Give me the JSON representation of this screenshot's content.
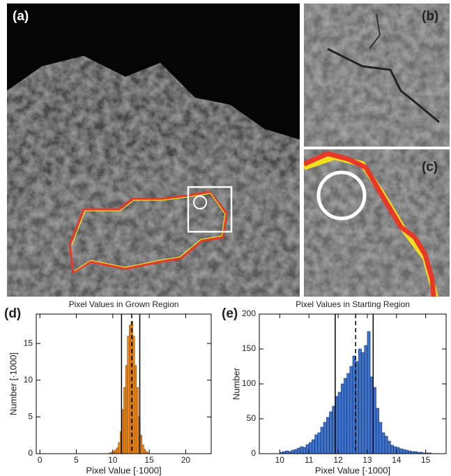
{
  "panel_labels": [
    "(a)",
    "(b)",
    "(c)"
  ],
  "chart_data": [
    {
      "type": "histogram",
      "label": "(d)",
      "title": "Pixel Values in Grown Region",
      "x_label": "Pixel Value [·1000]",
      "y_label": "Number [·1000]",
      "bins": [
        9.5,
        9.75,
        10,
        10.25,
        10.5,
        10.75,
        11,
        11.25,
        11.5,
        11.75,
        12,
        12.25,
        12.5,
        12.75,
        13,
        13.25,
        13.5,
        13.75,
        14,
        14.25,
        14.5,
        14.75,
        15
      ],
      "values": [
        0.1,
        0.2,
        0.3,
        0.5,
        0.8,
        1.5,
        3,
        6,
        9,
        12,
        16,
        17.5,
        18,
        16,
        12,
        9,
        5,
        2.5,
        1.2,
        0.6,
        0.3,
        0.1
      ],
      "color": "#f08c1e",
      "edge_color": "#7a4000",
      "xlim": [
        -0.5,
        23.5
      ],
      "xticks": [
        0,
        5,
        10,
        15,
        20
      ],
      "ylim": [
        0,
        19
      ],
      "yticks": [
        0,
        5,
        10,
        15
      ],
      "lines": [
        {
          "value": 11.2,
          "style": "solid"
        },
        {
          "value": 12.6,
          "style": "dashed"
        },
        {
          "value": 13.7,
          "style": "solid"
        }
      ]
    },
    {
      "type": "histogram",
      "label": "(e)",
      "title": "Pixel Values in Starting Region",
      "x_label": "Pixel Value [·1000]",
      "y_label": "Number",
      "bins": [
        10.0,
        10.1,
        10.2,
        10.3,
        10.4,
        10.5,
        10.6,
        10.7,
        10.8,
        10.9,
        11.0,
        11.1,
        11.2,
        11.3,
        11.4,
        11.5,
        11.6,
        11.7,
        11.8,
        11.9,
        12.0,
        12.1,
        12.2,
        12.3,
        12.4,
        12.5,
        12.6,
        12.7,
        12.8,
        12.9,
        13.0,
        13.1,
        13.2,
        13.3,
        13.4,
        13.5,
        13.6,
        13.7,
        13.8,
        13.9,
        14.0,
        14.1,
        14.2,
        14.3,
        14.4,
        14.5,
        14.6,
        14.7,
        14.8,
        14.9,
        15.0,
        15.1,
        15.2
      ],
      "values": [
        2,
        3,
        4,
        3,
        5,
        6,
        8,
        10,
        9,
        13,
        16,
        20,
        27,
        30,
        38,
        45,
        52,
        60,
        68,
        82,
        88,
        100,
        108,
        115,
        125,
        140,
        132,
        150,
        145,
        155,
        175,
        110,
        95,
        65,
        45,
        30,
        25,
        18,
        12,
        10,
        9,
        7,
        6,
        5,
        4,
        3,
        3,
        2,
        2,
        1,
        1,
        1
      ],
      "color": "#3f72c8",
      "edge_color": "#10306a",
      "xlim": [
        9.3,
        15.7
      ],
      "xticks": [
        10,
        11,
        12,
        13,
        14,
        15
      ],
      "ylim": [
        0,
        200
      ],
      "yticks": [
        0,
        50,
        100,
        150,
        200
      ],
      "lines": [
        {
          "value": 11.9,
          "style": "solid"
        },
        {
          "value": 12.6,
          "style": "dashed"
        },
        {
          "value": 13.2,
          "style": "solid"
        }
      ]
    }
  ]
}
